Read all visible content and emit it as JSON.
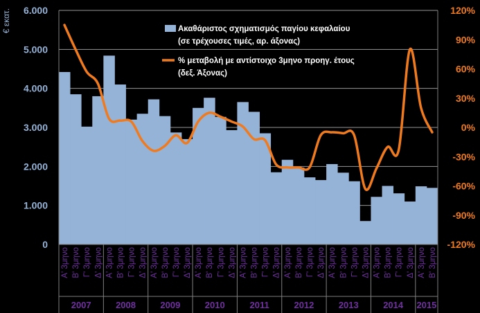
{
  "chart_data": {
    "type": "bar+line",
    "ylabel_left": "€ εκατ.",
    "ylim_left": [
      0,
      6000
    ],
    "yticks_left": [
      "0",
      "1.000",
      "2.000",
      "3.000",
      "4.000",
      "5.000",
      "6.000"
    ],
    "yticks_left_values": [
      0,
      1000,
      2000,
      3000,
      4000,
      5000,
      6000
    ],
    "ylim_right": [
      -120,
      120
    ],
    "yticks_right": [
      "-120%",
      "-90%",
      "-60%",
      "-30%",
      "0%",
      "30%",
      "60%",
      "90%",
      "120%"
    ],
    "yticks_right_values": [
      -120,
      -90,
      -60,
      -30,
      0,
      30,
      60,
      90,
      120
    ],
    "categories": [
      "Α' 3μηνο",
      "Β' 3μηνο",
      "Γ' 3μηνο",
      "Δ' 3μηνο",
      "Α' 3μηνο",
      "Β' 3μηνο",
      "Γ' 3μηνο",
      "Δ' 3μηνο",
      "Α' 3μηνο",
      "Β' 3μηνο",
      "Γ' 3μηνο",
      "Δ' 3μηνο",
      "Α' 3μηνο",
      "Β' 3μηνο",
      "Γ' 3μηνο",
      "Δ' 3μηνο",
      "Α' 3μηνο",
      "Β' 3μηνο",
      "Γ' 3μηνο",
      "Δ' 3μηνο",
      "Α' 3μηνο",
      "Β' 3μηνο",
      "Γ' 3μηνο",
      "Δ' 3μηνο",
      "Α' 3μηνο",
      "Β' 3μηνο",
      "Γ' 3μηνο",
      "Δ' 3μηνο",
      "Α' 3μηνο",
      "Β' 3μηνο",
      "Γ' 3μηνο",
      "Δ' 3μηνο",
      "Α' 3μηνο",
      "Β' 3μηνο"
    ],
    "years": [
      {
        "label": "2007",
        "span": 4
      },
      {
        "label": "2008",
        "span": 4
      },
      {
        "label": "2009",
        "span": 4
      },
      {
        "label": "2010",
        "span": 4
      },
      {
        "label": "2011",
        "span": 4
      },
      {
        "label": "2012",
        "span": 4
      },
      {
        "label": "2013",
        "span": 4
      },
      {
        "label": "2014",
        "span": 4
      },
      {
        "label": "2015",
        "span": 2
      }
    ],
    "series": [
      {
        "name": "Ακαθάριστος σχηματισμός παγίου κεφαλαίου (σε τρέχουσες τιμές, αρ. άξονας)",
        "legend_lines": [
          "Ακαθάριστος σχηματισμός παγίου κεφαλαίου",
          "(σε τρέχουσες τιμές, αρ. άξονας)"
        ],
        "type": "bar",
        "axis": "left",
        "color": "#95B3D7",
        "values": [
          4420,
          3850,
          3020,
          3800,
          4840,
          4100,
          3200,
          3350,
          3720,
          3290,
          2870,
          2700,
          3500,
          3760,
          3270,
          2930,
          3650,
          3400,
          2850,
          1850,
          2170,
          1970,
          1720,
          1650,
          2060,
          1840,
          1620,
          600,
          1220,
          1500,
          1310,
          1100,
          1490,
          1450
        ]
      },
      {
        "name": "% μεταβολή με αντίστοιχο 3μηνο προηγ. έτους (δεξ. Άξονας)",
        "legend_lines": [
          "% μεταβολή με αντίστοιχο 3μηνο προηγ. έτους",
          "(δεξ. Άξονας)"
        ],
        "type": "line",
        "axis": "right",
        "color": "#F07A1E",
        "values": [
          105,
          80,
          57,
          45,
          9,
          7,
          6,
          -14,
          -24,
          -19,
          -8,
          -16,
          6,
          15,
          11,
          6,
          1,
          -12,
          -13,
          -38,
          -41,
          -41,
          -41,
          -8,
          -5,
          -6,
          -8,
          -63,
          -42,
          -20,
          -23,
          80,
          20,
          -5
        ]
      }
    ],
    "legend_position": "top-right",
    "colors": {
      "background": "#000000",
      "bar": "#95B3D7",
      "line": "#F07A1E",
      "left_axis_text": "#95B3D7",
      "right_axis_text": "#F07A1E",
      "category_text": "#7030A0",
      "gridline": "#D9D9D9"
    }
  }
}
